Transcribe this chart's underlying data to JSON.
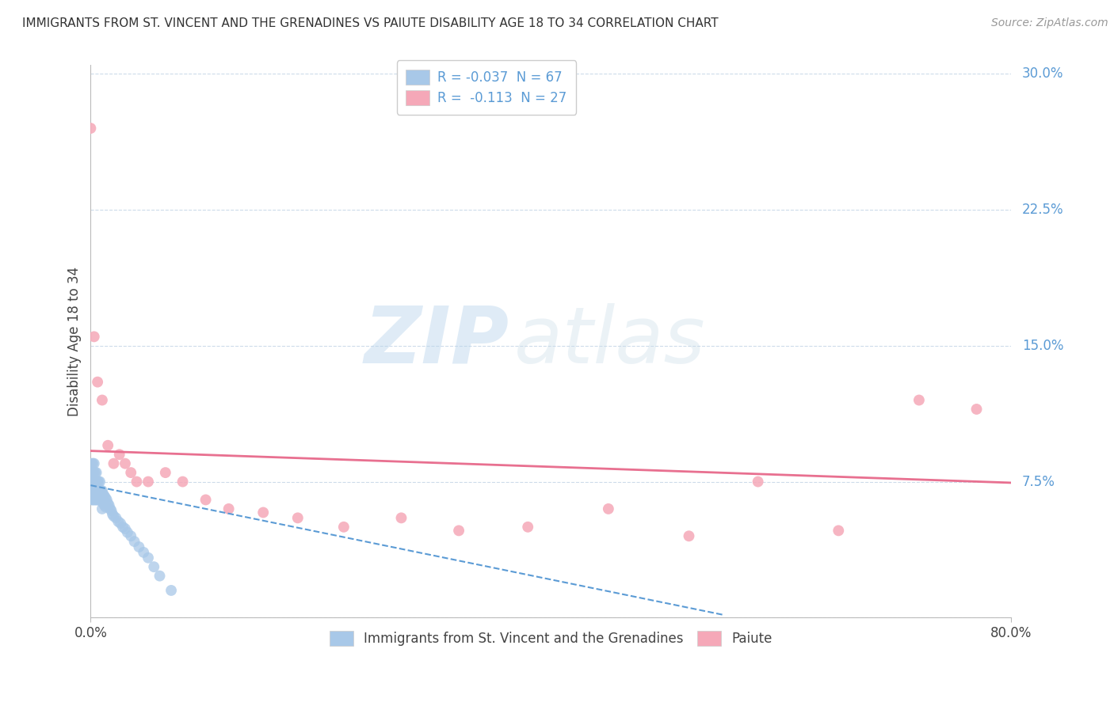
{
  "title": "IMMIGRANTS FROM ST. VINCENT AND THE GRENADINES VS PAIUTE DISABILITY AGE 18 TO 34 CORRELATION CHART",
  "source": "Source: ZipAtlas.com",
  "ylabel": "Disability Age 18 to 34",
  "xlim": [
    0.0,
    0.8
  ],
  "ylim": [
    0.0,
    0.305
  ],
  "yticks": [
    0.075,
    0.15,
    0.225,
    0.3
  ],
  "ytick_labels": [
    "7.5%",
    "15.0%",
    "22.5%",
    "30.0%"
  ],
  "xtick_labels": [
    "0.0%",
    "80.0%"
  ],
  "xtick_vals": [
    0.0,
    0.8
  ],
  "watermark_zip": "ZIP",
  "watermark_atlas": "atlas",
  "blue_R": -0.037,
  "blue_N": 67,
  "pink_R": -0.113,
  "pink_N": 27,
  "blue_color": "#a8c8e8",
  "pink_color": "#f5a8b8",
  "blue_line_color": "#5b9bd5",
  "pink_line_color": "#e87090",
  "label_color": "#5b9bd5",
  "grid_color": "#c8d8e8",
  "spine_color": "#bbbbbb",
  "blue_scatter_x": [
    0.0,
    0.0,
    0.0,
    0.001,
    0.001,
    0.001,
    0.001,
    0.001,
    0.002,
    0.002,
    0.002,
    0.002,
    0.002,
    0.003,
    0.003,
    0.003,
    0.003,
    0.003,
    0.004,
    0.004,
    0.004,
    0.004,
    0.005,
    0.005,
    0.005,
    0.005,
    0.006,
    0.006,
    0.006,
    0.007,
    0.007,
    0.007,
    0.008,
    0.008,
    0.008,
    0.009,
    0.009,
    0.01,
    0.01,
    0.01,
    0.011,
    0.011,
    0.012,
    0.012,
    0.013,
    0.013,
    0.014,
    0.015,
    0.016,
    0.017,
    0.018,
    0.019,
    0.02,
    0.022,
    0.024,
    0.026,
    0.028,
    0.03,
    0.032,
    0.035,
    0.038,
    0.042,
    0.046,
    0.05,
    0.055,
    0.06,
    0.07
  ],
  "blue_scatter_y": [
    0.08,
    0.075,
    0.07,
    0.085,
    0.08,
    0.075,
    0.07,
    0.065,
    0.085,
    0.08,
    0.075,
    0.07,
    0.065,
    0.085,
    0.08,
    0.075,
    0.07,
    0.065,
    0.08,
    0.075,
    0.07,
    0.065,
    0.08,
    0.075,
    0.07,
    0.065,
    0.075,
    0.07,
    0.065,
    0.075,
    0.07,
    0.065,
    0.075,
    0.07,
    0.065,
    0.07,
    0.065,
    0.07,
    0.065,
    0.06,
    0.068,
    0.063,
    0.067,
    0.062,
    0.066,
    0.061,
    0.065,
    0.063,
    0.062,
    0.06,
    0.059,
    0.057,
    0.056,
    0.055,
    0.053,
    0.052,
    0.05,
    0.049,
    0.047,
    0.045,
    0.042,
    0.039,
    0.036,
    0.033,
    0.028,
    0.023,
    0.015
  ],
  "pink_scatter_x": [
    0.0,
    0.003,
    0.006,
    0.01,
    0.015,
    0.02,
    0.025,
    0.03,
    0.035,
    0.04,
    0.05,
    0.065,
    0.08,
    0.1,
    0.12,
    0.15,
    0.18,
    0.22,
    0.27,
    0.32,
    0.38,
    0.45,
    0.52,
    0.58,
    0.65,
    0.72,
    0.77
  ],
  "pink_scatter_y": [
    0.27,
    0.155,
    0.13,
    0.12,
    0.095,
    0.085,
    0.09,
    0.085,
    0.08,
    0.075,
    0.075,
    0.08,
    0.075,
    0.065,
    0.06,
    0.058,
    0.055,
    0.05,
    0.055,
    0.048,
    0.05,
    0.06,
    0.045,
    0.075,
    0.048,
    0.12,
    0.115
  ],
  "blue_trend_x": [
    0.0,
    0.55
  ],
  "blue_trend_y0": 0.073,
  "blue_trend_slope": -0.13,
  "pink_trend_x": [
    0.0,
    0.8
  ],
  "pink_trend_y0": 0.092,
  "pink_trend_slope": -0.022
}
